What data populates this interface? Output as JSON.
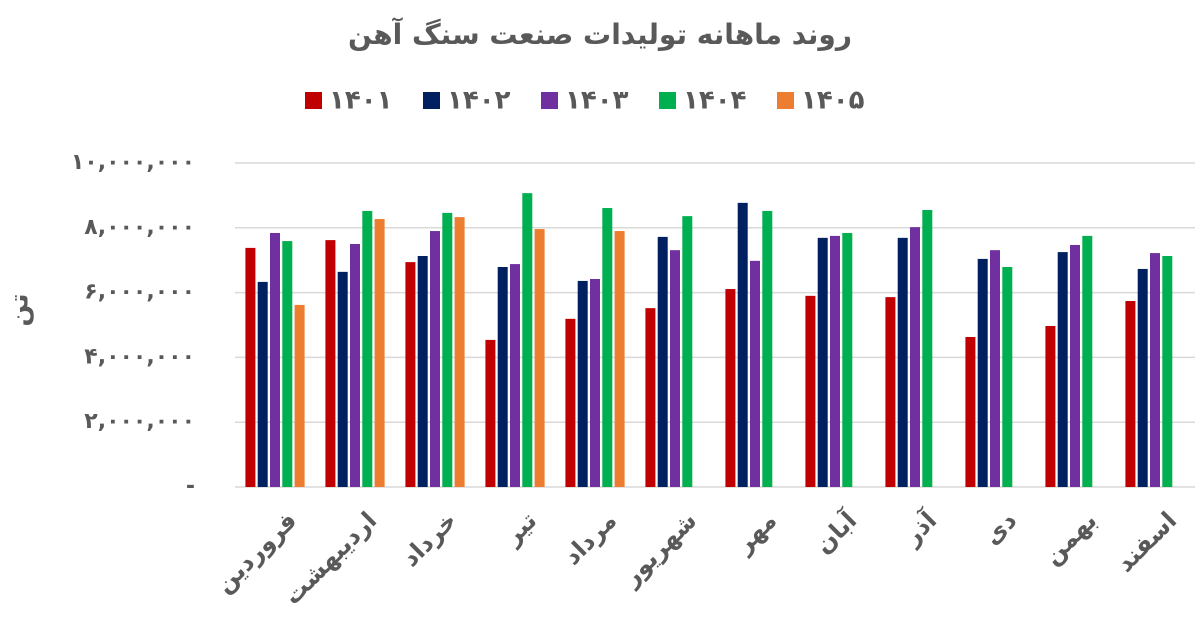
{
  "chart_data": {
    "type": "bar",
    "title": "روند ماهانه تولیدات صنعت سنگ آهن",
    "y_label": "تن",
    "categories": [
      "فروردین",
      "اردیبهشت",
      "خرداد",
      "تیر",
      "مرداد",
      "شهریور",
      "مهر",
      "آبان",
      "آذر",
      "دی",
      "بهمن",
      "اسفند"
    ],
    "series": [
      {
        "name": "۱۴۰۱",
        "color": "#c00000",
        "values": [
          7380000,
          7620000,
          6940000,
          4540000,
          5190000,
          5520000,
          6110000,
          5900000,
          5860000,
          4630000,
          4970000,
          5740000
        ]
      },
      {
        "name": "۱۴۰۲",
        "color": "#002060",
        "values": [
          6330000,
          6640000,
          7130000,
          6790000,
          6360000,
          7720000,
          8770000,
          7690000,
          7690000,
          7040000,
          7250000,
          6730000
        ]
      },
      {
        "name": "۱۴۰۳",
        "color": "#7030a0",
        "values": [
          7840000,
          7500000,
          7900000,
          6880000,
          6420000,
          7310000,
          6980000,
          7750000,
          8020000,
          7310000,
          7470000,
          7220000
        ]
      },
      {
        "name": "۱۴۰۴",
        "color": "#00b050",
        "values": [
          7590000,
          8520000,
          8460000,
          9070000,
          8610000,
          8360000,
          8520000,
          7840000,
          8550000,
          6790000,
          7750000,
          7130000
        ]
      },
      {
        "name": "۱۴۰۵",
        "color": "#ed7d31",
        "values": [
          5620000,
          8270000,
          8330000,
          7960000,
          7900000,
          null,
          null,
          null,
          null,
          null,
          null,
          null
        ]
      }
    ],
    "ylim": [
      0,
      10000000
    ],
    "yticks": [
      {
        "value": 0,
        "label": "-"
      },
      {
        "value": 2000000,
        "label": "۲,۰۰۰,۰۰۰"
      },
      {
        "value": 4000000,
        "label": "۴,۰۰۰,۰۰۰"
      },
      {
        "value": 6000000,
        "label": "۶,۰۰۰,۰۰۰"
      },
      {
        "value": 8000000,
        "label": "۸,۰۰۰,۰۰۰"
      },
      {
        "value": 10000000,
        "label": "۱۰,۰۰۰,۰۰۰"
      }
    ],
    "grid": true,
    "legend": "top"
  }
}
